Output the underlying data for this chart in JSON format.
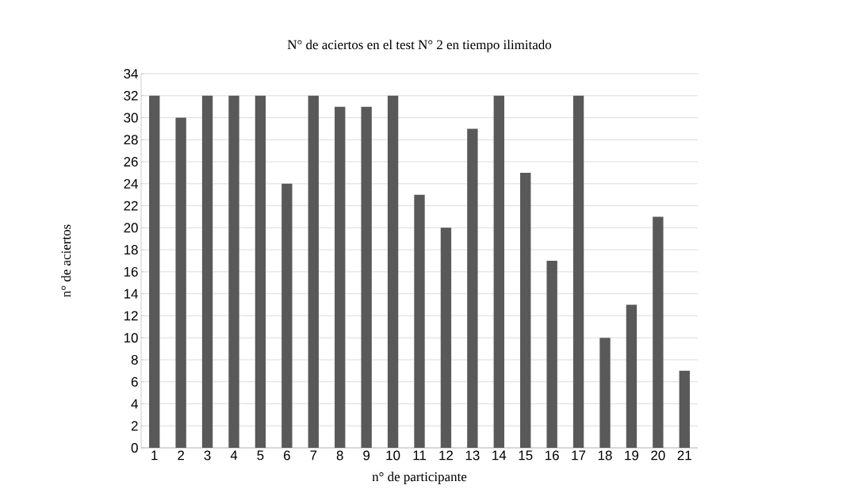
{
  "chart_data": {
    "type": "bar",
    "title": "N° de aciertos en el test N° 2 en tiempo ilimitado",
    "xlabel": "n° de participante",
    "ylabel": "n° de aciertos",
    "categories": [
      "1",
      "2",
      "3",
      "4",
      "5",
      "6",
      "7",
      "8",
      "9",
      "10",
      "11",
      "12",
      "13",
      "14",
      "15",
      "16",
      "17",
      "18",
      "19",
      "20",
      "21"
    ],
    "values": [
      32,
      30,
      32,
      32,
      32,
      24,
      32,
      31,
      31,
      32,
      23,
      20,
      29,
      32,
      25,
      17,
      32,
      10,
      13,
      21,
      7
    ],
    "color": "#595959",
    "ylim": [
      0,
      34
    ],
    "yticks": [
      0,
      2,
      4,
      6,
      8,
      10,
      12,
      14,
      16,
      18,
      20,
      22,
      24,
      26,
      28,
      30,
      32,
      34
    ],
    "grid": "y"
  }
}
